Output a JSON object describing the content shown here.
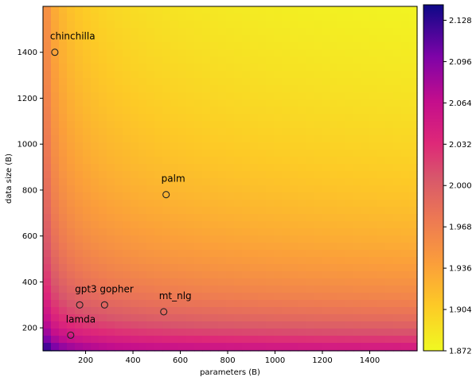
{
  "chart_data": {
    "type": "heatmap",
    "title": "",
    "xlabel": "parameters (B)",
    "ylabel": "data size (B)",
    "xlim": [
      20,
      1600
    ],
    "ylim": [
      100,
      1600
    ],
    "x_ticks": [
      200,
      400,
      600,
      800,
      1000,
      1200,
      1400
    ],
    "y_ticks": [
      200,
      400,
      600,
      800,
      1000,
      1200,
      1400
    ],
    "colormap": "plasma_r",
    "colorbar": {
      "min": 1.872,
      "max": 2.14,
      "ticks": [
        "1.872",
        "1.904",
        "1.936",
        "1.968",
        "2.000",
        "2.032",
        "2.064",
        "2.096",
        "2.128"
      ]
    },
    "points": [
      {
        "label": "chinchilla",
        "x": 70,
        "y": 1400
      },
      {
        "label": "palm",
        "x": 540,
        "y": 780
      },
      {
        "label": "gpt3",
        "x": 175,
        "y": 300
      },
      {
        "label": "gopher",
        "x": 280,
        "y": 300
      },
      {
        "label": "mt_nlg",
        "x": 530,
        "y": 270
      },
      {
        "label": "lamda",
        "x": 137,
        "y": 168
      }
    ]
  }
}
